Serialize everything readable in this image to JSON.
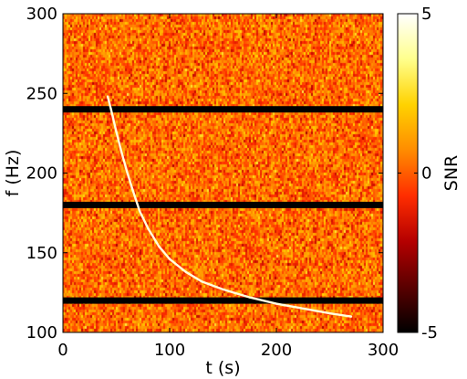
{
  "chart_data": {
    "type": "heatmap",
    "xlabel": "t (s)",
    "ylabel": "f (Hz)",
    "xlim": [
      0,
      300
    ],
    "ylim": [
      100,
      300
    ],
    "xticks": [
      0,
      100,
      200,
      300
    ],
    "yticks": [
      100,
      150,
      200,
      250,
      300
    ],
    "colorbar": {
      "label": "SNR",
      "range": [
        -5,
        5
      ],
      "ticks": [
        -5,
        0,
        5
      ],
      "colormap": [
        "#000000",
        "#5a0000",
        "#b40000",
        "#ff2d00",
        "#ff8c00",
        "#ffd200",
        "#ffff8c",
        "#ffffff"
      ]
    },
    "background_snr": {
      "min": -2.5,
      "max": 3.0
    },
    "masked_bands": [
      {
        "f": 120,
        "width_hz": 4
      },
      {
        "f": 180,
        "width_hz": 4
      },
      {
        "f": 240,
        "width_hz": 4
      }
    ],
    "chirp_track": {
      "snr": 4.6,
      "points": [
        {
          "t": 42,
          "f": 248
        },
        {
          "t": 45,
          "f": 240
        },
        {
          "t": 50,
          "f": 226
        },
        {
          "t": 55,
          "f": 213
        },
        {
          "t": 60,
          "f": 201
        },
        {
          "t": 65,
          "f": 190
        },
        {
          "t": 72,
          "f": 176
        },
        {
          "t": 80,
          "f": 165
        },
        {
          "t": 90,
          "f": 154
        },
        {
          "t": 100,
          "f": 146
        },
        {
          "t": 115,
          "f": 138
        },
        {
          "t": 130,
          "f": 132
        },
        {
          "t": 150,
          "f": 127
        },
        {
          "t": 175,
          "f": 122
        },
        {
          "t": 200,
          "f": 118
        },
        {
          "t": 225,
          "f": 115
        },
        {
          "t": 250,
          "f": 112
        },
        {
          "t": 270,
          "f": 110
        }
      ]
    }
  }
}
